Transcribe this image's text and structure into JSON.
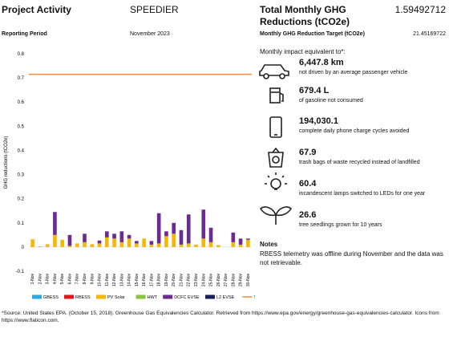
{
  "header": {
    "project_label": "Project Activity",
    "project": "SPEEDIER",
    "period_label": "Reporting Period",
    "period": "November 2023",
    "total_label": "Total Monthly GHG Reductions (tCO2e)",
    "total": "1.59492712",
    "target_label": "Monthly GHG Reduction Target (tCO2e)",
    "target": "21.45169722"
  },
  "chart_data": {
    "type": "stacked-bar",
    "y_label": "GHG reductions (tCO2e)",
    "categories": [
      "1-Nov",
      "2-Nov",
      "3-Nov",
      "4-Nov",
      "5-Nov",
      "6-Nov",
      "7-Nov",
      "8-Nov",
      "9-Nov",
      "10-Nov",
      "11-Nov",
      "12-Nov",
      "13-Nov",
      "14-Nov",
      "15-Nov",
      "16-Nov",
      "17-Nov",
      "18-Nov",
      "19-Nov",
      "20-Nov",
      "21-Nov",
      "22-Nov",
      "23-Nov",
      "24-Nov",
      "25-Nov",
      "26-Nov",
      "27-Nov",
      "28-Nov",
      "29-Nov",
      "30-Nov"
    ],
    "series": [
      {
        "name": "GBESS",
        "color": "#2ea8e0",
        "values": [
          0,
          0,
          0,
          0,
          0,
          0,
          0,
          0,
          0,
          0,
          0,
          0,
          0,
          0,
          0,
          0,
          0,
          0,
          0,
          0,
          0,
          0,
          0,
          0,
          0,
          0,
          0,
          0,
          0,
          0
        ]
      },
      {
        "name": "RBESS",
        "color": "#e3151a",
        "values": [
          0,
          0,
          0,
          0,
          0,
          0,
          0,
          0,
          0,
          0,
          0,
          0,
          0,
          0,
          0,
          0,
          0,
          0,
          0,
          0,
          0,
          0,
          0,
          0,
          0,
          0,
          0,
          0,
          0,
          0
        ]
      },
      {
        "name": "PV Solar",
        "color": "#f5b800",
        "values": [
          0.032,
          0.003,
          0.012,
          0.05,
          0.03,
          0.005,
          0.015,
          0.02,
          0.012,
          0.015,
          0.04,
          0.035,
          0.02,
          0.035,
          0.015,
          0.035,
          0.01,
          0.015,
          0.045,
          0.055,
          0.01,
          0.015,
          0.01,
          0.035,
          0.02,
          0.008,
          0,
          0.02,
          0.01,
          0.03
        ]
      },
      {
        "name": "HWT",
        "color": "#8cc63f",
        "values": [
          0,
          0,
          0,
          0,
          0,
          0,
          0,
          0,
          0,
          0,
          0,
          0,
          0,
          0,
          0,
          0,
          0,
          0,
          0,
          0,
          0,
          0,
          0,
          0,
          0,
          0,
          0,
          0,
          0,
          0
        ]
      },
      {
        "name": "DCFC EVSE",
        "color": "#6a2c91",
        "values": [
          0,
          0,
          0,
          0.095,
          0,
          0.045,
          0,
          0.035,
          0,
          0.012,
          0.025,
          0.02,
          0.045,
          0.015,
          0.01,
          0,
          0.015,
          0.125,
          0.02,
          0.045,
          0.06,
          0.12,
          0,
          0.12,
          0.06,
          0,
          0,
          0.04,
          0.025,
          0.005
        ]
      },
      {
        "name": "L2 EVSE",
        "color": "#1a1f5c",
        "values": [
          0,
          0,
          0,
          0,
          0,
          0,
          0,
          0,
          0,
          0,
          0,
          0,
          0,
          0,
          0,
          0,
          0,
          0,
          0,
          0,
          0,
          0,
          0,
          0,
          0,
          0,
          0,
          0,
          0,
          0
        ]
      }
    ],
    "target": {
      "name": "Target",
      "color": "#f08a3c",
      "value": 0.715
    },
    "ylim": [
      -0.1,
      0.8
    ],
    "yticks": [
      -0.1,
      0,
      0.1,
      0.2,
      0.3,
      0.4,
      0.5,
      0.6,
      0.7,
      0.8
    ],
    "grid": false
  },
  "equivalents": {
    "heading": "Monthly impact equivalent to*:",
    "items": [
      {
        "value": "6,447.8 km",
        "text": "not driven by an average passenger vehicle"
      },
      {
        "value": "679.4 L",
        "text": "of gasoline not consumed"
      },
      {
        "value": "194,030.1",
        "text": "complete daily phone charge cycles avoided"
      },
      {
        "value": "67.9",
        "text": "trash bags of waste recycled instead of landfilled"
      },
      {
        "value": "60.4",
        "text": "incandescent lamps switched to LEDs for one year"
      },
      {
        "value": "26.6",
        "text": "tree seedlings grown for 10 years"
      }
    ]
  },
  "notes": {
    "title": "Notes",
    "text": "RBESS telemetry was offline during November and the data was not retrievable."
  },
  "source": "*Source: United States EPA. (October 15, 2018). Greenhouse Gas Equivalencies Calculator. Retrieved from https://www.epa.gov/energy/greenhouse-gas-equivalencies-calculator. Icons from https://www.flaticon.com."
}
